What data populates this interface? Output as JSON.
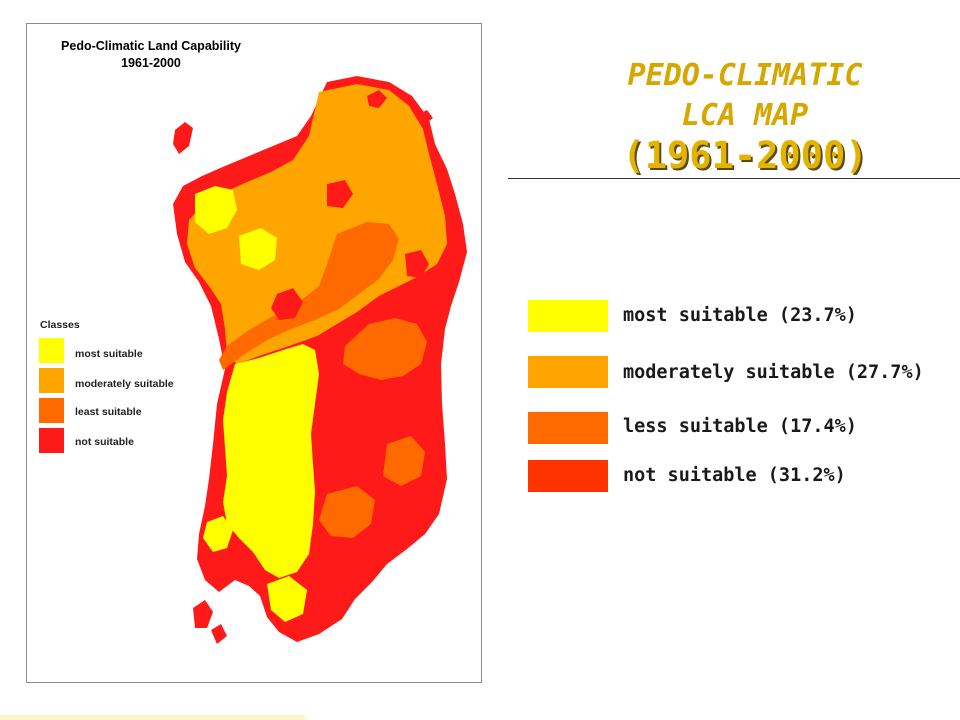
{
  "map": {
    "title_line1": "Pedo-Climatic Land Capability",
    "title_line2": "1961-2000",
    "legend": {
      "heading": "Classes",
      "items": [
        {
          "label": "most suitable",
          "color": "#ffff00"
        },
        {
          "label": "moderately suitable",
          "color": "#ffa500"
        },
        {
          "label": "least suitable",
          "color": "#ff6a00"
        },
        {
          "label": "not suitable",
          "color": "#ff1a1a"
        }
      ]
    }
  },
  "slide": {
    "title_line1": "PEDO-CLIMATIC",
    "title_line2": "LCA MAP",
    "title_line3": "(1961-2000)",
    "title_color": "#d6a700",
    "key": [
      {
        "label": "most suitable (23.7%)",
        "color": "#ffff00"
      },
      {
        "label": "moderately suitable (27.7%)",
        "color": "#ffa500"
      },
      {
        "label": "less suitable (17.4%)",
        "color": "#ff6a00"
      },
      {
        "label": "not suitable (31.2%)",
        "color": "#ff3300"
      }
    ]
  }
}
